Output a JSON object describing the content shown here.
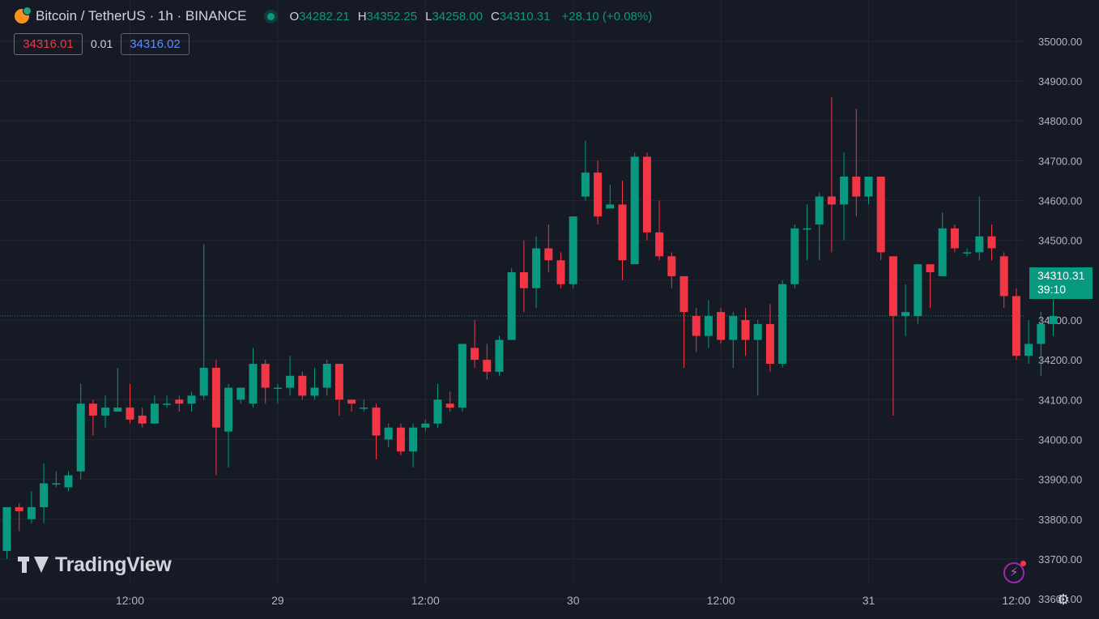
{
  "legend": {
    "symbol": "Bitcoin / TetherUS · 1h · BINANCE",
    "o_label": "O",
    "o": "34282.21",
    "h_label": "H",
    "h": "34352.25",
    "l_label": "L",
    "l": "34258.00",
    "c_label": "C",
    "c": "34310.31",
    "change": "+28.10 (+0.08%)"
  },
  "quotes": {
    "bid": "34316.01",
    "spread": "0.01",
    "ask": "34316.02"
  },
  "last_price": {
    "value": "34310.31",
    "countdown": "39:10"
  },
  "brand": "TradingView",
  "icons": {
    "bolt": "bolt-icon",
    "settings": "gear-icon"
  },
  "colors": {
    "up": "#089981",
    "down": "#f23645",
    "background": "#161a25",
    "grid": "#232632"
  },
  "chart_data": {
    "type": "candlestick",
    "ylim": [
      33550,
      35000
    ],
    "y_ticks": [
      "33600.00",
      "33700.00",
      "33800.00",
      "33900.00",
      "34000.00",
      "34100.00",
      "34200.00",
      "34300.00",
      "34400.00",
      "34500.00",
      "34600.00",
      "34700.00",
      "34800.00",
      "34900.00",
      "35000.00"
    ],
    "x_ticks": [
      {
        "index": 10,
        "label": "12:00"
      },
      {
        "index": 22,
        "label": "29"
      },
      {
        "index": 34,
        "label": "12:00"
      },
      {
        "index": 46,
        "label": "30"
      },
      {
        "index": 58,
        "label": "12:00"
      },
      {
        "index": 70,
        "label": "31"
      },
      {
        "index": 82,
        "label": "12:00"
      }
    ],
    "last_price": 34310.31,
    "candles": [
      [
        33720,
        33830,
        33700,
        33830
      ],
      [
        33830,
        33840,
        33770,
        33820
      ],
      [
        33800,
        33870,
        33790,
        33830
      ],
      [
        33830,
        33940,
        33790,
        33890
      ],
      [
        33890,
        33920,
        33880,
        33890
      ],
      [
        33880,
        33920,
        33870,
        33910
      ],
      [
        33920,
        34140,
        33900,
        34090
      ],
      [
        34090,
        34100,
        34010,
        34060
      ],
      [
        34060,
        34110,
        34030,
        34080
      ],
      [
        34070,
        34180,
        34070,
        34080
      ],
      [
        34080,
        34140,
        34040,
        34050
      ],
      [
        34060,
        34080,
        34030,
        34040
      ],
      [
        34040,
        34110,
        34040,
        34090
      ],
      [
        34090,
        34110,
        34080,
        34090
      ],
      [
        34100,
        34110,
        34070,
        34090
      ],
      [
        34090,
        34120,
        34070,
        34110
      ],
      [
        34110,
        34490,
        34100,
        34180
      ],
      [
        34180,
        34200,
        33910,
        34030
      ],
      [
        34020,
        34140,
        33930,
        34130
      ],
      [
        34100,
        34130,
        34090,
        34130
      ],
      [
        34090,
        34230,
        34080,
        34190
      ],
      [
        34190,
        34200,
        34090,
        34130
      ],
      [
        34130,
        34140,
        34090,
        34130
      ],
      [
        34130,
        34210,
        34110,
        34160
      ],
      [
        34160,
        34170,
        34100,
        34110
      ],
      [
        34110,
        34180,
        34100,
        34130
      ],
      [
        34130,
        34200,
        34110,
        34190
      ],
      [
        34190,
        34190,
        34060,
        34100
      ],
      [
        34100,
        34100,
        34070,
        34090
      ],
      [
        34080,
        34100,
        34070,
        34080
      ],
      [
        34080,
        34090,
        33950,
        34010
      ],
      [
        34000,
        34040,
        33980,
        34030
      ],
      [
        34030,
        34040,
        33960,
        33970
      ],
      [
        33970,
        34040,
        33930,
        34030
      ],
      [
        34030,
        34050,
        34020,
        34040
      ],
      [
        34040,
        34140,
        34030,
        34100
      ],
      [
        34090,
        34120,
        34070,
        34080
      ],
      [
        34080,
        34240,
        34070,
        34240
      ],
      [
        34230,
        34300,
        34180,
        34200
      ],
      [
        34200,
        34240,
        34150,
        34170
      ],
      [
        34170,
        34260,
        34160,
        34250
      ],
      [
        34250,
        34430,
        34250,
        34420
      ],
      [
        34420,
        34500,
        34320,
        34380
      ],
      [
        34380,
        34510,
        34330,
        34480
      ],
      [
        34480,
        34540,
        34420,
        34450
      ],
      [
        34450,
        34470,
        34380,
        34390
      ],
      [
        34390,
        34560,
        34380,
        34560
      ],
      [
        34610,
        34750,
        34600,
        34670
      ],
      [
        34670,
        34700,
        34540,
        34560
      ],
      [
        34580,
        34640,
        34580,
        34590
      ],
      [
        34590,
        34650,
        34400,
        34450
      ],
      [
        34440,
        34720,
        34440,
        34710
      ],
      [
        34710,
        34720,
        34500,
        34520
      ],
      [
        34520,
        34600,
        34450,
        34460
      ],
      [
        34460,
        34470,
        34380,
        34410
      ],
      [
        34410,
        34410,
        34180,
        34320
      ],
      [
        34310,
        34330,
        34220,
        34260
      ],
      [
        34260,
        34350,
        34230,
        34310
      ],
      [
        34320,
        34330,
        34240,
        34250
      ],
      [
        34250,
        34320,
        34180,
        34310
      ],
      [
        34300,
        34330,
        34210,
        34250
      ],
      [
        34250,
        34300,
        34110,
        34290
      ],
      [
        34290,
        34340,
        34170,
        34190
      ],
      [
        34190,
        34400,
        34180,
        34390
      ],
      [
        34390,
        34540,
        34380,
        34530
      ],
      [
        34530,
        34590,
        34450,
        34530
      ],
      [
        34540,
        34620,
        34450,
        34610
      ],
      [
        34610,
        34860,
        34470,
        34590
      ],
      [
        34590,
        34720,
        34500,
        34660
      ],
      [
        34660,
        34830,
        34560,
        34610
      ],
      [
        34610,
        34660,
        34590,
        34660
      ],
      [
        34660,
        34660,
        34450,
        34470
      ],
      [
        34460,
        34460,
        34060,
        34310
      ],
      [
        34310,
        34390,
        34260,
        34320
      ],
      [
        34310,
        34440,
        34290,
        34440
      ],
      [
        34440,
        34440,
        34330,
        34420
      ],
      [
        34410,
        34570,
        34410,
        34530
      ],
      [
        34530,
        34540,
        34470,
        34480
      ],
      [
        34470,
        34480,
        34460,
        34470
      ],
      [
        34470,
        34610,
        34450,
        34510
      ],
      [
        34510,
        34540,
        34450,
        34480
      ],
      [
        34460,
        34470,
        34330,
        34360
      ],
      [
        34360,
        34380,
        34200,
        34210
      ],
      [
        34210,
        34300,
        34190,
        34240
      ],
      [
        34240,
        34320,
        34160,
        34290
      ],
      [
        34290,
        34350,
        34260,
        34310
      ]
    ]
  }
}
